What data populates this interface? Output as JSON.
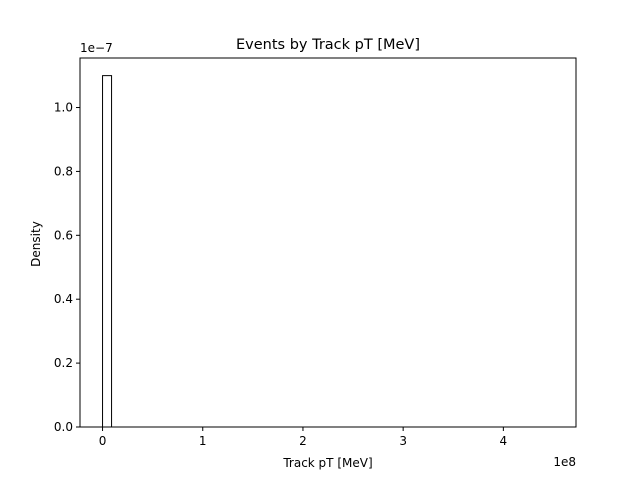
{
  "chart_data": {
    "type": "bar",
    "title": "Events by Track pT [MeV]",
    "xlabel": "Track pT [MeV]",
    "ylabel": "Density",
    "x_offset_label": "1e8",
    "y_offset_label": "1e−7",
    "x_scale": 100000000,
    "y_scale": 1e-07,
    "xlim": [
      -22500000,
      472500000
    ],
    "ylim": [
      0,
      1.155e-07
    ],
    "x_ticks": [
      0,
      100000000,
      200000000,
      300000000,
      400000000
    ],
    "x_tick_labels": [
      "0",
      "1",
      "2",
      "3",
      "4"
    ],
    "y_ticks": [
      0,
      2e-08,
      4e-08,
      6e-08,
      8e-08,
      1e-07
    ],
    "y_tick_labels": [
      "0.0",
      "0.2",
      "0.4",
      "0.6",
      "0.8",
      "1.0"
    ],
    "histogram": {
      "style": "step",
      "bin_range": [
        0,
        450000000
      ],
      "bin_count": 50,
      "counts_density": [
        1.1e-07
      ],
      "remaining_bins_value": 0
    },
    "grid": false,
    "colors": {
      "outline": "#000000",
      "background": "#ffffff"
    }
  }
}
